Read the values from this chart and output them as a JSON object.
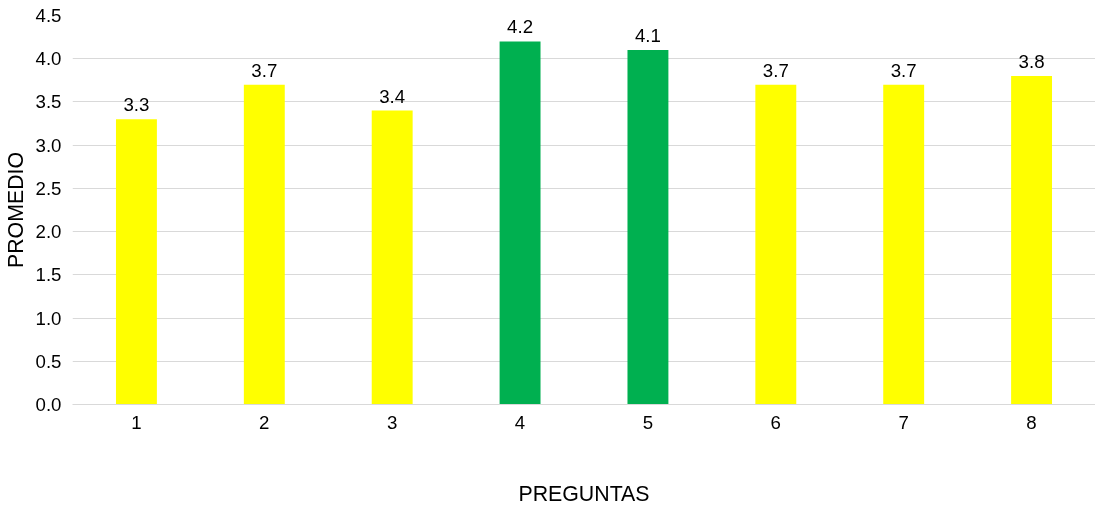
{
  "chart_data": {
    "type": "bar",
    "xlabel": "PREGUNTAS",
    "ylabel": "PROMEDIO",
    "categories": [
      "1",
      "2",
      "3",
      "4",
      "5",
      "6",
      "7",
      "8"
    ],
    "values": [
      3.3,
      3.7,
      3.4,
      4.2,
      4.1,
      3.7,
      3.7,
      3.8
    ],
    "colors": [
      "#ffff00",
      "#ffff00",
      "#ffff00",
      "#00b050",
      "#00b050",
      "#ffff00",
      "#ffff00",
      "#ffff00"
    ],
    "ylim": [
      0,
      4.5
    ],
    "yticks": [
      {
        "value": 0,
        "label": "0.0"
      },
      {
        "value": 0.5,
        "label": "0.5"
      },
      {
        "value": 1,
        "label": "1.0"
      },
      {
        "value": 1.5,
        "label": "1.5"
      },
      {
        "value": 2,
        "label": "2.0"
      },
      {
        "value": 2.5,
        "label": "2.5"
      },
      {
        "value": 3,
        "label": "3.0"
      },
      {
        "value": 3.5,
        "label": "3.5"
      },
      {
        "value": 4,
        "label": "4.0"
      },
      {
        "value": 4.5,
        "label": "4.5"
      }
    ],
    "grid": "y",
    "data_labels": true
  }
}
